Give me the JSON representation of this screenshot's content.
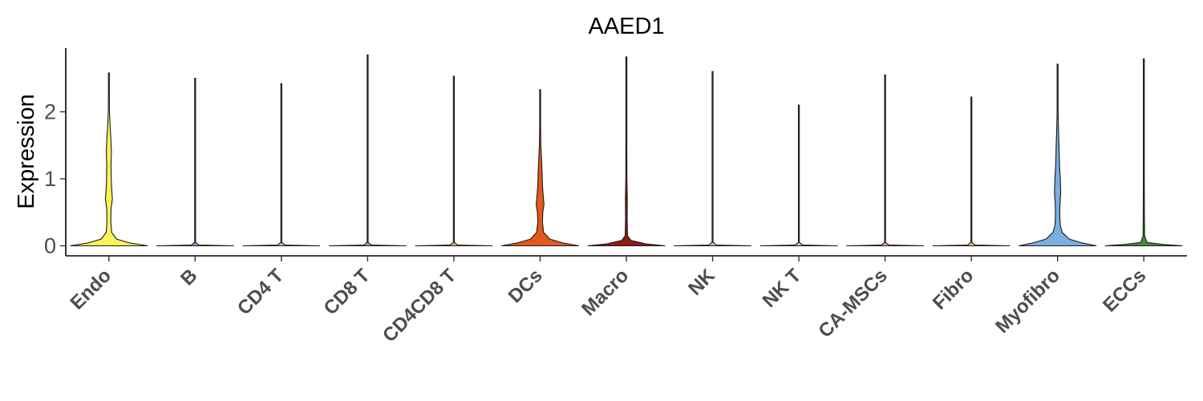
{
  "chart_data": {
    "type": "violin",
    "title": "AAED1",
    "xlabel": "",
    "ylabel": "Expression",
    "ylim": [
      -0.15,
      2.95
    ],
    "yticks": [
      0,
      1,
      2
    ],
    "grid": false,
    "legend": "none",
    "categories": [
      "Endo",
      "B",
      "CD4 T",
      "CD8 T",
      "CD4CD8 T",
      "DCs",
      "Macro",
      "NK",
      "NK T",
      "CA-MSCs",
      "Fibro",
      "Myofibro",
      "ECCs"
    ],
    "series": [
      {
        "category": "Endo",
        "color": "#fbf358",
        "max": 2.58,
        "density": [
          [
            0,
            1.0
          ],
          [
            0.04,
            0.55
          ],
          [
            0.1,
            0.2
          ],
          [
            0.2,
            0.07
          ],
          [
            0.35,
            0.05
          ],
          [
            0.55,
            0.055
          ],
          [
            0.7,
            0.09
          ],
          [
            0.85,
            0.07
          ],
          [
            1.0,
            0.06
          ],
          [
            1.2,
            0.055
          ],
          [
            1.4,
            0.065
          ],
          [
            1.6,
            0.05
          ],
          [
            1.8,
            0.03
          ],
          [
            2.0,
            0.015
          ],
          [
            2.2,
            0.008
          ],
          [
            2.58,
            0.004
          ]
        ]
      },
      {
        "category": "B",
        "color": "#7fa7dc",
        "max": 2.5,
        "density": [
          [
            0,
            1.0
          ],
          [
            0.01,
            0.1
          ],
          [
            0.05,
            0.008
          ],
          [
            2.5,
            0.004
          ]
        ]
      },
      {
        "category": "CD4 T",
        "color": "#8dd3a7",
        "max": 2.42,
        "density": [
          [
            0,
            1.0
          ],
          [
            0.01,
            0.1
          ],
          [
            0.05,
            0.008
          ],
          [
            2.42,
            0.004
          ]
        ]
      },
      {
        "category": "CD8 T",
        "color": "#c58fd6",
        "max": 2.85,
        "density": [
          [
            0,
            1.0
          ],
          [
            0.01,
            0.1
          ],
          [
            0.05,
            0.008
          ],
          [
            2.85,
            0.004
          ]
        ]
      },
      {
        "category": "CD4CD8 T",
        "color": "#f2b266",
        "max": 2.53,
        "density": [
          [
            0,
            1.0
          ],
          [
            0.01,
            0.1
          ],
          [
            0.05,
            0.008
          ],
          [
            2.53,
            0.004
          ]
        ]
      },
      {
        "category": "DCs",
        "color": "#e3581b",
        "max": 2.33,
        "density": [
          [
            0,
            1.0
          ],
          [
            0.04,
            0.6
          ],
          [
            0.1,
            0.25
          ],
          [
            0.2,
            0.09
          ],
          [
            0.35,
            0.06
          ],
          [
            0.5,
            0.07
          ],
          [
            0.62,
            0.1
          ],
          [
            0.75,
            0.08
          ],
          [
            0.9,
            0.06
          ],
          [
            1.1,
            0.05
          ],
          [
            1.3,
            0.035
          ],
          [
            1.5,
            0.02
          ],
          [
            1.8,
            0.01
          ],
          [
            2.33,
            0.004
          ]
        ]
      },
      {
        "category": "Macro",
        "color": "#8f1d15",
        "max": 2.82,
        "density": [
          [
            0,
            1.0
          ],
          [
            0.03,
            0.5
          ],
          [
            0.08,
            0.12
          ],
          [
            0.15,
            0.03
          ],
          [
            0.4,
            0.02
          ],
          [
            0.7,
            0.025
          ],
          [
            1.0,
            0.015
          ],
          [
            1.5,
            0.01
          ],
          [
            2.82,
            0.004
          ]
        ]
      },
      {
        "category": "NK",
        "color": "#a6cee3",
        "max": 2.6,
        "density": [
          [
            0,
            1.0
          ],
          [
            0.01,
            0.1
          ],
          [
            0.05,
            0.008
          ],
          [
            2.6,
            0.004
          ]
        ]
      },
      {
        "category": "NK T",
        "color": "#b2df8a",
        "max": 2.1,
        "density": [
          [
            0,
            1.0
          ],
          [
            0.01,
            0.1
          ],
          [
            0.05,
            0.008
          ],
          [
            2.1,
            0.004
          ]
        ]
      },
      {
        "category": "CA-MSCs",
        "color": "#fb9a99",
        "max": 2.55,
        "density": [
          [
            0,
            1.0
          ],
          [
            0.01,
            0.1
          ],
          [
            0.05,
            0.008
          ],
          [
            2.55,
            0.004
          ]
        ]
      },
      {
        "category": "Fibro",
        "color": "#fdbf6f",
        "max": 2.22,
        "density": [
          [
            0,
            1.0
          ],
          [
            0.01,
            0.1
          ],
          [
            0.05,
            0.008
          ],
          [
            2.22,
            0.004
          ]
        ]
      },
      {
        "category": "Myofibro",
        "color": "#79aee0",
        "max": 2.71,
        "density": [
          [
            0,
            1.0
          ],
          [
            0.04,
            0.65
          ],
          [
            0.1,
            0.3
          ],
          [
            0.2,
            0.12
          ],
          [
            0.3,
            0.07
          ],
          [
            0.45,
            0.055
          ],
          [
            0.6,
            0.06
          ],
          [
            0.8,
            0.08
          ],
          [
            1.0,
            0.07
          ],
          [
            1.2,
            0.05
          ],
          [
            1.45,
            0.04
          ],
          [
            1.7,
            0.025
          ],
          [
            2.0,
            0.01
          ],
          [
            2.71,
            0.004
          ]
        ]
      },
      {
        "category": "ECCs",
        "color": "#3f8f3a",
        "max": 2.79,
        "density": [
          [
            0,
            1.0
          ],
          [
            0.02,
            0.5
          ],
          [
            0.05,
            0.08
          ],
          [
            0.15,
            0.02
          ],
          [
            0.5,
            0.015
          ],
          [
            1.0,
            0.01
          ],
          [
            2.79,
            0.004
          ]
        ]
      }
    ]
  }
}
